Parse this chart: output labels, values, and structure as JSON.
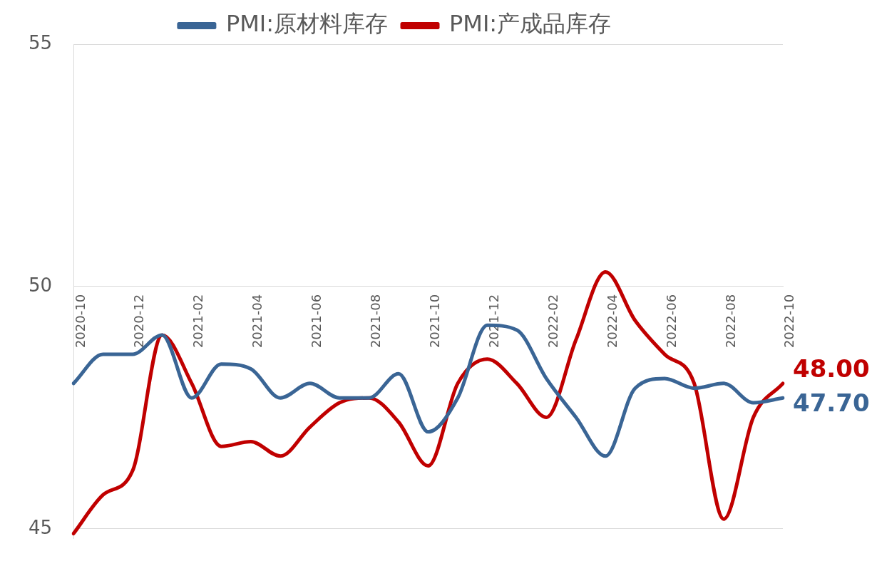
{
  "chart_data": {
    "type": "line",
    "categories": [
      "2020-10",
      null,
      "2020-12",
      null,
      "2021-02",
      null,
      "2021-04",
      null,
      "2021-06",
      null,
      "2021-08",
      null,
      "2021-10",
      null,
      "2021-12",
      null,
      "2022-02",
      null,
      "2022-04",
      null,
      "2022-06",
      null,
      "2022-08",
      null,
      "2022-10"
    ],
    "series": [
      {
        "name": "PMI:原材料库存",
        "color": "#3a6595",
        "values": [
          48.0,
          48.6,
          48.6,
          49.0,
          47.7,
          48.4,
          48.3,
          47.7,
          48.0,
          47.7,
          47.7,
          48.2,
          47.0,
          47.7,
          49.2,
          49.1,
          48.1,
          47.3,
          46.5,
          47.9,
          48.1,
          47.9,
          48.0,
          47.6,
          47.7
        ],
        "value_labels": [
          null,
          null,
          null,
          null,
          null,
          null,
          null,
          null,
          null,
          null,
          null,
          null,
          null,
          null,
          null,
          null,
          null,
          null,
          null,
          null,
          null,
          null,
          null,
          null,
          "47.70"
        ]
      },
      {
        "name": "PMI:产成品库存",
        "color": "#c00000",
        "values": [
          44.9,
          45.7,
          46.2,
          49.0,
          48.0,
          46.7,
          46.8,
          46.5,
          47.1,
          47.6,
          47.7,
          47.2,
          46.3,
          48.0,
          48.5,
          48.0,
          47.3,
          48.9,
          50.3,
          49.3,
          48.6,
          48.0,
          45.2,
          47.3,
          48.0
        ],
        "value_labels": [
          null,
          null,
          null,
          null,
          null,
          null,
          null,
          null,
          null,
          null,
          null,
          null,
          null,
          null,
          null,
          null,
          null,
          null,
          null,
          null,
          null,
          null,
          null,
          null,
          "48.00"
        ]
      }
    ],
    "ylim": [
      44.8,
      55
    ],
    "yticks": [
      45,
      50,
      55
    ],
    "grid": "y",
    "legend": "top",
    "marker": "none",
    "line_style": "solid"
  }
}
